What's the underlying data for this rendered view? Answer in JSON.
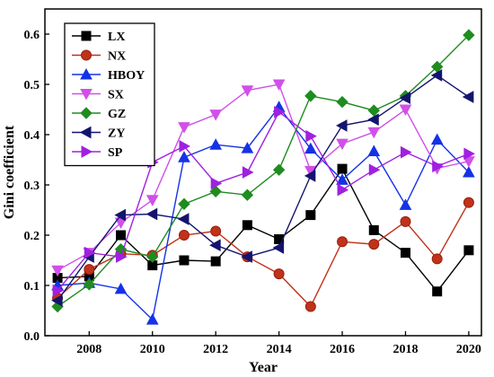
{
  "chart_data": {
    "type": "line",
    "xlabel": "Year",
    "ylabel": "Gini coefficient",
    "xlim": [
      2006.6,
      2020.4
    ],
    "ylim": [
      0.0,
      0.65
    ],
    "xticks": [
      2008,
      2010,
      2012,
      2014,
      2016,
      2018,
      2020
    ],
    "xtick_labels": [
      "2008",
      "2010",
      "2012",
      "2014",
      "2016",
      "2018",
      "2020"
    ],
    "yticks": [
      0.0,
      0.1,
      0.2,
      0.3,
      0.4,
      0.5,
      0.6
    ],
    "ytick_labels": [
      "0.0",
      "0.1",
      "0.2",
      "0.3",
      "0.4",
      "0.5",
      "0.6"
    ],
    "grid": false,
    "legend_position": "top-left",
    "x": [
      2007,
      2008,
      2009,
      2010,
      2011,
      2012,
      2013,
      2014,
      2015,
      2016,
      2017,
      2018,
      2019,
      2020
    ],
    "series": [
      {
        "name": "LX",
        "color": "#000000",
        "marker": "square",
        "values": [
          0.115,
          0.118,
          0.2,
          0.14,
          0.15,
          0.148,
          0.22,
          0.192,
          0.24,
          0.332,
          0.21,
          0.165,
          0.088,
          0.17
        ]
      },
      {
        "name": "NX",
        "color": "#c0321a",
        "marker": "circle",
        "values": [
          0.075,
          0.132,
          0.163,
          0.16,
          0.2,
          0.208,
          0.157,
          0.123,
          0.058,
          0.187,
          0.182,
          0.227,
          0.153,
          0.265
        ]
      },
      {
        "name": "HBOY",
        "color": "#1432e6",
        "marker": "triangle-up",
        "values": [
          0.1,
          0.105,
          0.093,
          0.032,
          0.355,
          0.38,
          0.373,
          0.455,
          0.372,
          0.31,
          0.367,
          0.26,
          0.39,
          0.325
        ]
      },
      {
        "name": "SX",
        "color": "#d050e8",
        "marker": "triangle-down",
        "values": [
          0.13,
          0.165,
          0.225,
          0.27,
          0.415,
          0.44,
          0.488,
          0.5,
          0.328,
          0.382,
          0.405,
          0.45,
          0.333,
          0.347
        ]
      },
      {
        "name": "GZ",
        "color": "#1f8c1f",
        "marker": "diamond",
        "values": [
          0.058,
          0.102,
          0.172,
          0.157,
          0.262,
          0.287,
          0.28,
          0.33,
          0.477,
          0.465,
          0.448,
          0.477,
          0.535,
          0.598
        ]
      },
      {
        "name": "ZY",
        "color": "#14146e",
        "marker": "triangle-left",
        "values": [
          0.07,
          0.157,
          0.24,
          0.242,
          0.232,
          0.18,
          0.157,
          0.175,
          0.318,
          0.418,
          0.43,
          0.473,
          0.518,
          0.475
        ]
      },
      {
        "name": "SP",
        "color": "#a020e0",
        "marker": "triangle-right",
        "values": [
          0.09,
          0.165,
          0.157,
          0.345,
          0.377,
          0.303,
          0.325,
          0.445,
          0.397,
          0.29,
          0.33,
          0.365,
          0.337,
          0.362
        ]
      }
    ]
  }
}
